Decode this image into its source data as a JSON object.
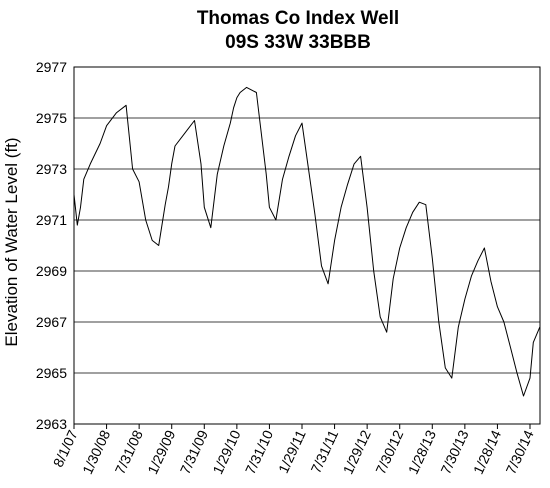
{
  "chart_data": {
    "type": "line",
    "title": [
      "Thomas Co Index Well",
      "09S 33W 33BBB"
    ],
    "xlabel": "",
    "ylabel": "Elevation of Water Level (ft)",
    "ylim": [
      2963,
      2977
    ],
    "yticks": [
      "2963",
      "2965",
      "2967",
      "2969",
      "2971",
      "2973",
      "2975",
      "2977"
    ],
    "xticks": [
      "8/1/07",
      "1/30/08",
      "7/31/08",
      "1/29/09",
      "7/31/09",
      "1/29/10",
      "7/31/10",
      "1/29/11",
      "7/31/11",
      "1/29/12",
      "7/30/12",
      "1/28/13",
      "7/30/13",
      "1/28/14",
      "7/30/14"
    ],
    "grid": "horizontal",
    "legend": "none",
    "line_color": "#000000",
    "series": [
      {
        "x": [
          0,
          0.1,
          0.2,
          0.3,
          0.5,
          0.8,
          1.0,
          1.3,
          1.6,
          1.8,
          2.0,
          2.2,
          2.4,
          2.6,
          2.8,
          2.9,
          3.0,
          3.1,
          3.4,
          3.7,
          3.9,
          4.0,
          4.2,
          4.4,
          4.6,
          4.8,
          4.9,
          5.0,
          5.1,
          5.3,
          5.6,
          5.9,
          6.0,
          6.2,
          6.4,
          6.6,
          6.8,
          7.0,
          7.2,
          7.4,
          7.6,
          7.8,
          8.0,
          8.2,
          8.4,
          8.6,
          8.8,
          9.0,
          9.2,
          9.4,
          9.6,
          9.8,
          10.0,
          10.2,
          10.4,
          10.6,
          10.8,
          11.0,
          11.2,
          11.4,
          11.6,
          11.8,
          12.0,
          12.2,
          12.4,
          12.6,
          12.8,
          13.0,
          13.2,
          13.4,
          13.6,
          13.8,
          14.0,
          14.1,
          14.3
        ],
        "y": [
          2972.0,
          2970.8,
          2971.5,
          2972.6,
          2973.2,
          2974.0,
          2974.7,
          2975.2,
          2975.5,
          2973.0,
          2972.5,
          2971.0,
          2970.2,
          2970.0,
          2971.6,
          2972.3,
          2973.2,
          2973.9,
          2974.4,
          2974.9,
          2973.2,
          2971.5,
          2970.7,
          2972.8,
          2973.9,
          2974.8,
          2975.4,
          2975.8,
          2976.0,
          2976.2,
          2976.0,
          2972.8,
          2971.5,
          2971.0,
          2972.6,
          2973.5,
          2974.3,
          2974.8,
          2973.0,
          2971.2,
          2969.2,
          2968.5,
          2970.2,
          2971.5,
          2972.4,
          2973.2,
          2973.5,
          2971.5,
          2969.0,
          2967.2,
          2966.6,
          2968.7,
          2969.9,
          2970.7,
          2971.3,
          2971.7,
          2971.6,
          2969.5,
          2967.0,
          2965.2,
          2964.8,
          2966.8,
          2967.9,
          2968.8,
          2969.4,
          2969.9,
          2968.6,
          2967.6,
          2967.0,
          2966.0,
          2965.0,
          2964.1,
          2964.8,
          2966.2,
          2966.8
        ]
      }
    ]
  }
}
